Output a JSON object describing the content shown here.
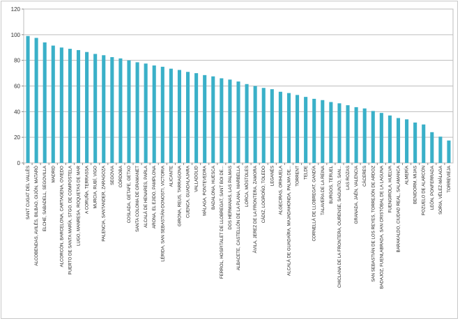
{
  "chart_data": {
    "type": "bar",
    "title": "",
    "xlabel": "",
    "ylabel": "",
    "ylim": [
      0,
      120
    ],
    "yticks": [
      0,
      20,
      40,
      60,
      80,
      100,
      120
    ],
    "grid": true,
    "legend": "none",
    "bar_color": "#3ab0c8",
    "categories": [
      "SANT CUGAT DEL VALLÈS",
      "ALCOBENDAS, AVILÉS, BILBAO, GIJÓN, MATARÓ",
      "ELCHE, SABADELL, SEGOVILLA",
      "MADRID",
      "ALCORCÓN, BARCELONA, CARTAGENA, OVIEDO",
      "PUERTO DE SANTA MARÍA, STGO. DE COMPOSTELA",
      "LUGO, MANRESA, ROQUETAS DE MAR",
      "A CORUÑA, TERRASSA",
      "MURCIA, RUBÍ, VIGO",
      "PALENCIA, SANTANDER, ZARAGOZA",
      "SEGOVIA",
      "CÓRDOBA",
      "COSLADA, GETAFE, GETXO",
      "SANTA COLOMA DE GRAMANET",
      "ALCALÁ DE HENARES, PARLA",
      "ARONA, EL EJIDO, PAMPLONA",
      "LÉRIDA, SAN SEBASTIÁN-DONOSTI, VICTORIA",
      "ALICANTE",
      "GIRONA, REUS, TARRAGONA",
      "CUENCA, GUADALAJARA",
      "VALLADOLID",
      "MÁLAGA, PONTEVEDRA",
      "BADALONA, HUESCA",
      "FERROL, HOSPITALET DE LLOBREGAT, SANT BOI DE...",
      "DOS HERMANAS, LAS PALMAS",
      "ALBACETE, CASTELLÓN DE LA PLANA, MARBELLA",
      "LORCA, MÓSTOLES",
      "ÁVILA, JEREZ DE LA FRONTERA, ZAMORA",
      "CÁDIZ, LOGROÑO, TOLEDO",
      "LEGANÉS",
      "ALGECIRAS, ORIHUELA",
      "ALCALÁ DE GUADAÍRA, MAJADAHONDA, PALMA DE...",
      "TORRENT",
      "TELDE",
      "CORNELLÁ DE LLOBREGAT, GANDÍA",
      "TALAVERA DE LA REINA",
      "BURGOS, TERUEL",
      "CHICLANA DE LA FRONTERA, OURENSE, SAGUNTO, SAN...",
      "LAS ROZAS",
      "GRANADA, JAÉN, VALENCIA",
      "CÁCERES",
      "SAN SEBASTIÁN DE LOS REYES, TORREJÓN DE ARDOZ",
      "BADAJOZ, FUENLABRADA, SAN CRISTÓBAL DE LA LAGUNA",
      "FUENGIROLA, HUELVA",
      "BARAKALDO, CIUDAD REAL, SALAMANCA",
      "ALMERÍA",
      "BENIDORM, MIJAS",
      "POZUELO DE ALARCÓN",
      "LEÓN, PONFERRADA",
      "SORIA, VÉLEZ-MÁLAGA",
      "TORREVIEJA"
    ],
    "values": [
      99,
      97.5,
      94,
      91.5,
      90,
      89,
      88,
      86.5,
      85,
      84,
      82.5,
      81.5,
      80,
      78.5,
      77.5,
      76,
      75,
      73.5,
      72.5,
      71,
      70,
      68.5,
      67.5,
      66,
      65,
      63.5,
      61.5,
      60,
      58.5,
      57.5,
      55.5,
      54.5,
      53,
      51.5,
      50,
      49,
      47.5,
      46.5,
      45,
      43.5,
      42.5,
      40.5,
      39,
      37,
      35,
      34,
      31.5,
      30,
      24,
      20.5,
      17.5
    ]
  }
}
